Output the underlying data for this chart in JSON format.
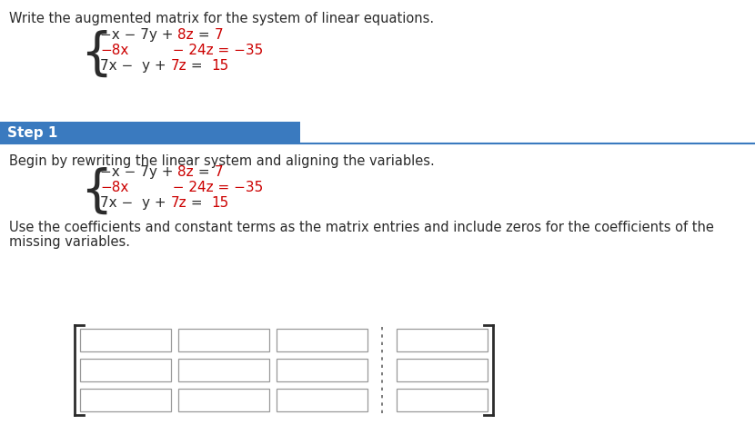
{
  "title": "Write the augmented matrix for the system of linear equations.",
  "step1_label": "Step 1",
  "step1_bg": "#3a7abf",
  "step1_description": "Begin by rewriting the linear system and aligning the variables.",
  "matrix_instruction_line1": "Use the coefficients and constant terms as the matrix entries and include zeros for the coefficients of the",
  "matrix_instruction_line2": "missing variables.",
  "bg_color": "#ffffff",
  "black": "#2b2b2b",
  "red": "#cc0000",
  "blue_line": "#3a7abf",
  "eq_font": 11,
  "text_font": 10.5,
  "banner_font": 11
}
